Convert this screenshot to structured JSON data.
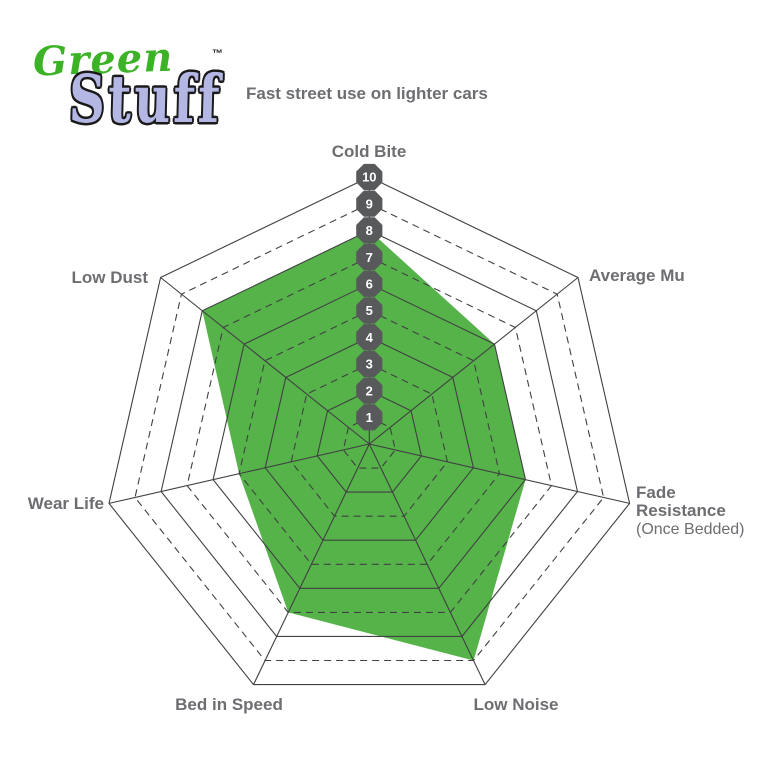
{
  "logo": {
    "green_text": "Green",
    "stuff_text": "Stuff",
    "trademark": "™",
    "green_color": "#3cb327",
    "stuff_color": "#b4b6e4",
    "stuff_outline_color": "#1a1a1a"
  },
  "tagline": "Fast street use on lighter cars",
  "chart_data": {
    "type": "radar",
    "title": "",
    "scale": {
      "min": 1,
      "max": 10,
      "tick_labels": [
        "1",
        "2",
        "3",
        "4",
        "5",
        "6",
        "7",
        "8",
        "9",
        "10"
      ]
    },
    "axes": [
      {
        "label": "Cold Bite",
        "value": 8
      },
      {
        "label": "Average Mu",
        "value": 6
      },
      {
        "label": "Fade Resistance",
        "label_lines": [
          "Fade",
          "Resistance"
        ],
        "sublabel": "(Once Bedded)",
        "value": 6
      },
      {
        "label": "Low Noise",
        "value": 9
      },
      {
        "label": "Bed in Speed",
        "value": 7
      },
      {
        "label": "Wear Life",
        "value": 5
      },
      {
        "label": "Low Dust",
        "value": 8
      }
    ],
    "series": [
      {
        "values": [
          8,
          6,
          6,
          9,
          7,
          5,
          8
        ],
        "color": "#55b34a"
      }
    ],
    "grid": {
      "rings": 10,
      "solid_rings": "even",
      "dashed_rings": "odd",
      "line_color": "#414042"
    },
    "badge": {
      "fill": "#58595b",
      "text_color": "#ffffff"
    },
    "label_color": "#6d6e71",
    "legend_position": "none"
  }
}
